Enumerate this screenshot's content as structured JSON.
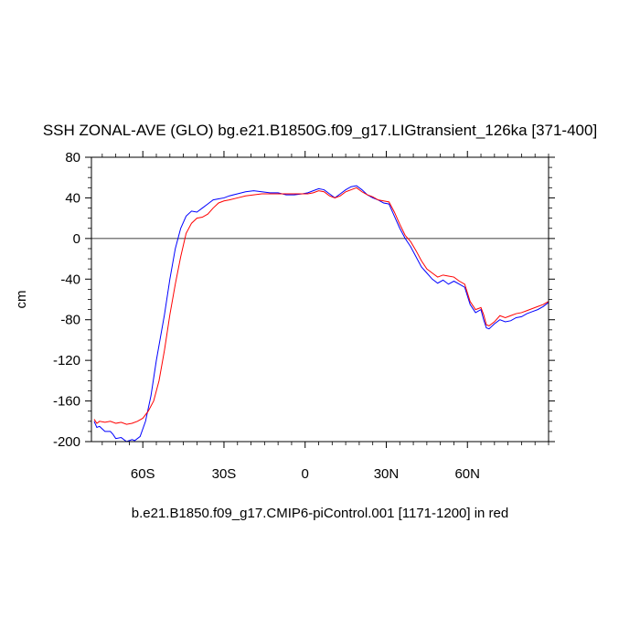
{
  "chart_data": {
    "type": "line",
    "title": "SSH ZONAL-AVE (GLO) bg.e21.B1850G.f09_g17.LIGtransient_126ka [371-400]",
    "xlabel": "b.e21.B1850.f09_g17.CMIP6-piControl.001 [1171-1200] in red",
    "ylabel": "cm",
    "xlim": [
      -79,
      90
    ],
    "ylim": [
      -200,
      80
    ],
    "yticks": [
      -200,
      -160,
      -120,
      -80,
      -40,
      0,
      40,
      80
    ],
    "yticklabels": [
      "-200",
      "-160",
      "-120",
      "-80",
      "-40",
      "0",
      "40",
      "80"
    ],
    "xticks": [
      -60,
      -30,
      0,
      30,
      60
    ],
    "xticklabels": [
      "60S",
      "30S",
      "0",
      "30N",
      "60N"
    ],
    "zero_line": true,
    "series": [
      {
        "color": "#0000ff",
        "x": [
          -78,
          -77,
          -76,
          -74,
          -72,
          -71,
          -70,
          -68,
          -66,
          -64,
          -63,
          -61,
          -59,
          -57,
          -55,
          -52,
          -50,
          -48,
          -46,
          -44,
          -42,
          -40,
          -38,
          -36,
          -34,
          -32,
          -30,
          -28,
          -25,
          -22,
          -19,
          -16,
          -13,
          -10,
          -7,
          -4,
          -1,
          1,
          3,
          5,
          7,
          9,
          11,
          13,
          15,
          17,
          19,
          21,
          23,
          25,
          27,
          29,
          31,
          33,
          35,
          37,
          39,
          41,
          43,
          45,
          47,
          49,
          51,
          53,
          55,
          57,
          59,
          61,
          63,
          65,
          66,
          67,
          68,
          70,
          72,
          74,
          76,
          78,
          80,
          82,
          84,
          86,
          88,
          90
        ],
        "values": [
          -180,
          -186,
          -185,
          -190,
          -190,
          -193,
          -197,
          -196,
          -200,
          -198,
          -199,
          -195,
          -180,
          -155,
          -120,
          -75,
          -40,
          -10,
          10,
          22,
          27,
          26,
          30,
          34,
          38,
          39,
          40,
          42,
          44,
          46,
          47,
          46,
          45,
          45,
          43,
          43,
          44,
          45,
          47,
          49,
          48,
          44,
          40,
          44,
          48,
          51,
          52,
          48,
          43,
          40,
          38,
          35,
          34,
          22,
          10,
          0,
          -8,
          -18,
          -28,
          -34,
          -40,
          -44,
          -41,
          -45,
          -42,
          -45,
          -48,
          -65,
          -73,
          -70,
          -80,
          -88,
          -89,
          -84,
          -80,
          -82,
          -81,
          -78,
          -77,
          -74,
          -72,
          -70,
          -67,
          -63
        ]
      },
      {
        "color": "#ff0000",
        "x": [
          -78,
          -77,
          -76,
          -74,
          -72,
          -70,
          -68,
          -66,
          -64,
          -62,
          -60,
          -58,
          -56,
          -54,
          -52,
          -50,
          -48,
          -46,
          -44,
          -42,
          -40,
          -38,
          -36,
          -34,
          -32,
          -30,
          -28,
          -25,
          -22,
          -19,
          -16,
          -13,
          -10,
          -7,
          -4,
          -1,
          1,
          3,
          5,
          7,
          9,
          11,
          13,
          15,
          17,
          19,
          21,
          23,
          25,
          27,
          29,
          31,
          33,
          35,
          37,
          39,
          41,
          43,
          45,
          47,
          49,
          51,
          53,
          55,
          57,
          59,
          61,
          63,
          65,
          66,
          67,
          68,
          70,
          72,
          74,
          76,
          78,
          80,
          82,
          84,
          86,
          88,
          90
        ],
        "values": [
          -178,
          -182,
          -180,
          -181,
          -180,
          -182,
          -181,
          -183,
          -182,
          -180,
          -177,
          -170,
          -160,
          -140,
          -110,
          -75,
          -45,
          -18,
          5,
          15,
          20,
          21,
          24,
          30,
          35,
          37,
          38,
          40,
          42,
          43,
          44,
          44,
          44,
          44,
          44,
          44,
          44,
          45,
          47,
          46,
          42,
          40,
          42,
          46,
          48,
          50,
          46,
          43,
          41,
          38,
          37,
          36,
          26,
          14,
          3,
          -3,
          -12,
          -22,
          -30,
          -34,
          -38,
          -36,
          -37,
          -38,
          -42,
          -45,
          -62,
          -70,
          -68,
          -75,
          -85,
          -86,
          -82,
          -76,
          -78,
          -76,
          -74,
          -73,
          -71,
          -69,
          -67,
          -65,
          -62
        ]
      }
    ]
  }
}
